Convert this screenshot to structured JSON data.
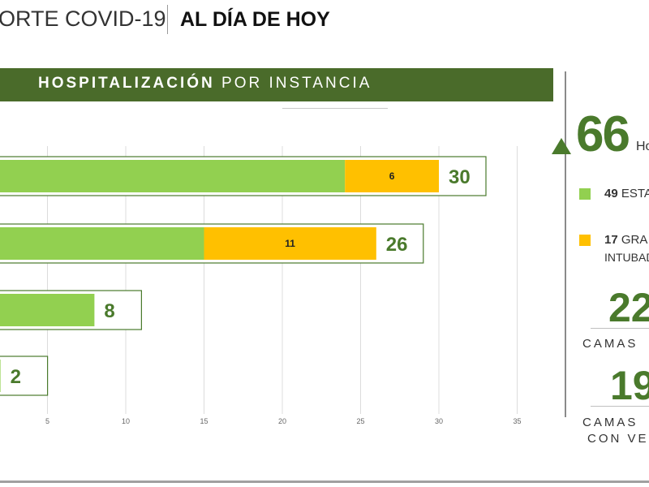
{
  "header": {
    "left_text": "ORTE COVID-19",
    "right_text": "AL DÍA DE HOY"
  },
  "banner": {
    "bold": "HOSPITALIZACIÓN",
    "rest": " POR INSTANCIA"
  },
  "summary": {
    "total": "66",
    "total_suffix": "Ho",
    "legend": [
      {
        "num": "49",
        "label": " ESTA",
        "color": "#92d050"
      },
      {
        "num": "17",
        "label": " GRA",
        "label2": "INTUBAD",
        "color": "#ffc000"
      }
    ],
    "beds1_value": "22",
    "beds1_label": "CAMAS",
    "beds2_value": "19",
    "beds2_label_1": "CAMAS",
    "beds2_label_2": "CON VE"
  },
  "chart_data": {
    "type": "bar",
    "orientation": "horizontal",
    "stacked": true,
    "xlim": [
      0,
      35
    ],
    "x_ticks": [
      5,
      10,
      15,
      20,
      25,
      30,
      35
    ],
    "grid": true,
    "categories": [
      "",
      "",
      "",
      ""
    ],
    "series": [
      {
        "values": [
          24,
          15,
          8,
          2
        ],
        "color": "#92d050"
      },
      {
        "values": [
          6,
          11,
          0,
          0
        ],
        "color": "#ffc000"
      }
    ],
    "totals": [
      30,
      26,
      8,
      2
    ],
    "segment_labels": [
      "6",
      "11",
      "",
      ""
    ]
  }
}
